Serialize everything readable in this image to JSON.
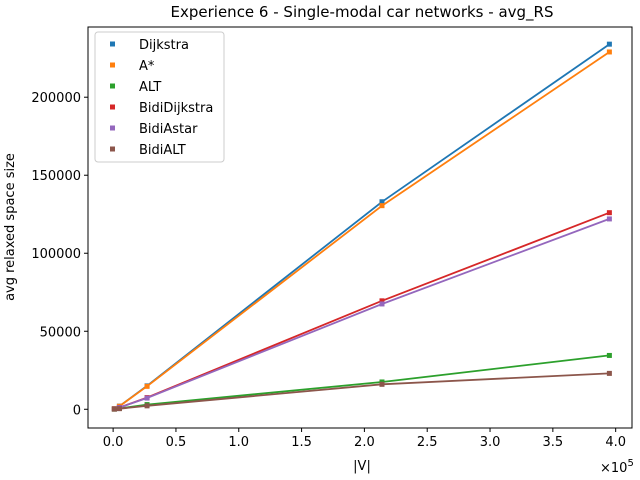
{
  "chart_data": {
    "type": "line",
    "title": "Experience 6 - Single-modal car networks - avg_RS",
    "xlabel": "|V|",
    "ylabel": "avg relaxed space size",
    "x_scale_label": "×10",
    "x_scale_exponent": "5",
    "xlim": [
      -0.2,
      4.13
    ],
    "ylim": [
      -12000,
      245000
    ],
    "xticks": [
      0.0,
      0.5,
      1.0,
      1.5,
      2.0,
      2.5,
      3.0,
      3.5,
      4.0
    ],
    "xtick_labels": [
      "0.0",
      "0.5",
      "1.0",
      "1.5",
      "2.0",
      "2.5",
      "3.0",
      "3.5",
      "4.0"
    ],
    "yticks": [
      0,
      50000,
      100000,
      150000,
      200000
    ],
    "ytick_labels": [
      "0",
      "50000",
      "100000",
      "150000",
      "200000"
    ],
    "grid": false,
    "legend_position": "top-left",
    "x": [
      0.01,
      0.05,
      0.27,
      2.14,
      3.95
    ],
    "series": [
      {
        "name": "Dijkstra",
        "color": "#1f77b4",
        "values": [
          400,
          2000,
          15000,
          133000,
          234000
        ]
      },
      {
        "name": "A*",
        "color": "#ff7f0e",
        "values": [
          390,
          1950,
          14700,
          130500,
          229000
        ]
      },
      {
        "name": "ALT",
        "color": "#2ca02c",
        "values": [
          100,
          500,
          3000,
          17500,
          34500
        ]
      },
      {
        "name": "BidiDijkstra",
        "color": "#d62728",
        "values": [
          200,
          1100,
          7500,
          69500,
          126000
        ]
      },
      {
        "name": "BidiAstar",
        "color": "#9467bd",
        "values": [
          200,
          1050,
          7200,
          67500,
          122000
        ]
      },
      {
        "name": "BidiALT",
        "color": "#8c564b",
        "values": [
          80,
          400,
          2200,
          16000,
          23000
        ]
      }
    ]
  }
}
